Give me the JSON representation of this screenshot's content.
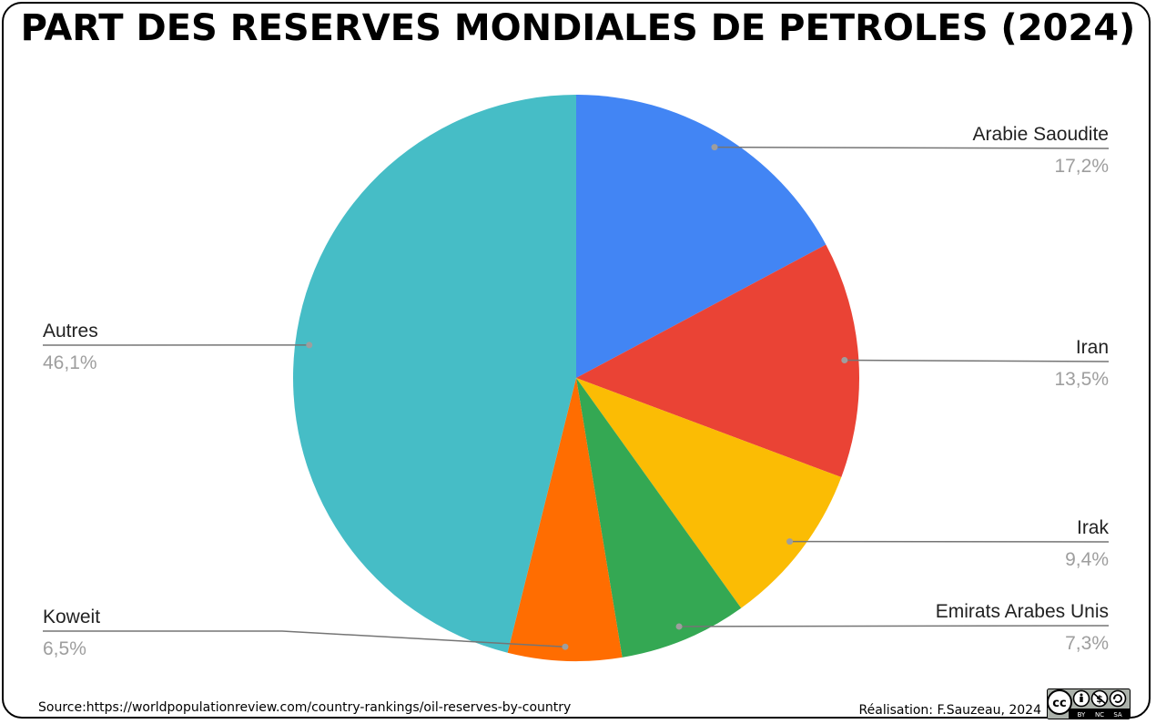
{
  "title": "PART DES RESERVES MONDIALES DE PETROLES (2024)",
  "source": "Source:https://worldpopulationreview.com/country-rankings/oil-reserves-by-country",
  "credit": "Réalisation: F.Sauzeau, 2024",
  "license": {
    "icon": "cc-by-nc-sa-icon",
    "labels": [
      "BY",
      "NC",
      "SA"
    ]
  },
  "chart_data": {
    "type": "pie",
    "title": "PART DES RESERVES MONDIALES DE PETROLES (2024)",
    "slices": [
      {
        "label": "Arabie Saoudite",
        "value": 17.2,
        "display": "17,2%",
        "color": "#4285f4"
      },
      {
        "label": "Iran",
        "value": 13.5,
        "display": "13,5%",
        "color": "#ea4335"
      },
      {
        "label": "Irak",
        "value": 9.4,
        "display": "9,4%",
        "color": "#fbbc04"
      },
      {
        "label": "Emirats Arabes Unis",
        "value": 7.3,
        "display": "7,3%",
        "color": "#34a853"
      },
      {
        "label": "Koweit",
        "value": 6.5,
        "display": "6,5%",
        "color": "#ff6d01"
      },
      {
        "label": "Autres",
        "value": 46.1,
        "display": "46,1%",
        "color": "#46bdc6"
      }
    ],
    "legend": "none",
    "start_angle": "top, clockwise"
  }
}
